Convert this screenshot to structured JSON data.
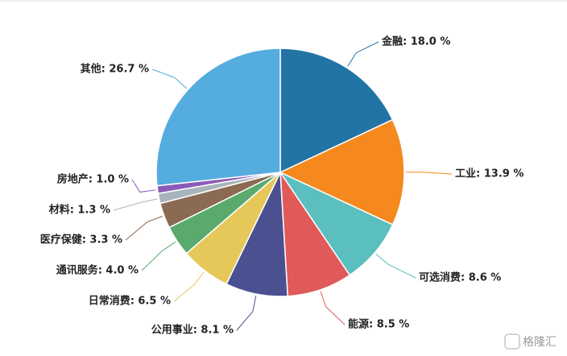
{
  "chart_data": {
    "type": "pie",
    "values": [
      18.0,
      13.9,
      8.6,
      8.5,
      8.1,
      6.5,
      4.0,
      3.3,
      1.3,
      1.0,
      26.7
    ],
    "value_labels": [
      "金融: 18.0 %",
      "工业: 13.9 %",
      "可选消费: 8.6 %",
      "能源: 8.5 %",
      "公用事业: 8.1 %",
      "日常消费: 6.5 %",
      "通讯服务: 4.0 %",
      "医疗保健: 3.3 %",
      "材料: 1.3 %",
      "房地产: 1.0 %",
      "其他: 26.7 %"
    ],
    "colors": [
      "#2274a5",
      "#f5891e",
      "#5bbfbf",
      "#e05a5a",
      "#4a5090",
      "#e6c85a",
      "#5aaa6e",
      "#8b6a52",
      "#a8b4bc",
      "#8a5cb8",
      "#55acdf"
    ]
  },
  "watermark": "格隆汇"
}
